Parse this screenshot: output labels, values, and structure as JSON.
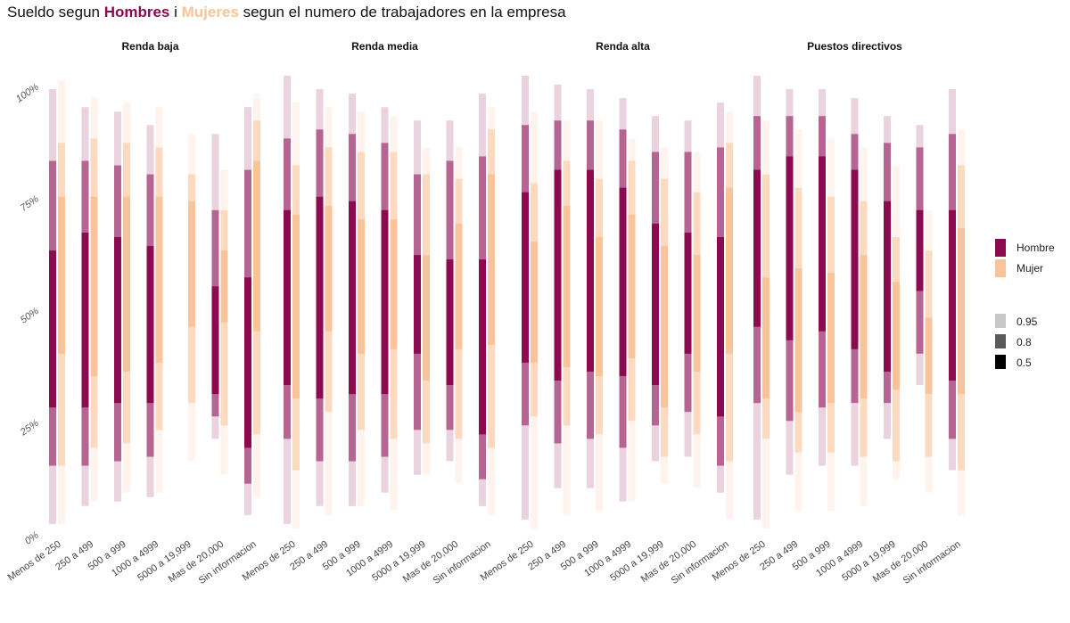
{
  "title": {
    "prefix": "Sueldo segun ",
    "hombres": "Hombres",
    "joiner": " i ",
    "mujeres": "Mujeres",
    "suffix": " segun el numero de trabajadores en la empresa"
  },
  "chart_data": {
    "type": "interval",
    "facets": [
      "Renda baja",
      "Renda media",
      "Renda alta",
      "Puestos directivos"
    ],
    "categories": [
      "Menos de 250",
      "250 a 499",
      "500 a 999",
      "1000 a 4999",
      "5000 a 19,999",
      "Mas de 20,000",
      "Sin informacion"
    ],
    "y_ticks": [
      "0%",
      "25%",
      "50%",
      "75%",
      "100%"
    ],
    "ylim": [
      0,
      1
    ],
    "levels": [
      "0.95",
      "0.8",
      "0.5"
    ],
    "series": [
      {
        "name": "Hombre",
        "color": "#8B0A50",
        "data": [
          [
            [
              [
                0.02,
                0.99
              ],
              [
                0.15,
                0.83
              ],
              [
                0.28,
                0.63
              ]
            ],
            [
              [
                0.06,
                0.95
              ],
              [
                0.15,
                0.83
              ],
              [
                0.28,
                0.67
              ]
            ],
            [
              [
                0.07,
                0.94
              ],
              [
                0.16,
                0.82
              ],
              [
                0.29,
                0.66
              ]
            ],
            [
              [
                0.08,
                0.91
              ],
              [
                0.17,
                0.8
              ],
              [
                0.29,
                0.64
              ]
            ],
            null,
            [
              [
                0.21,
                0.89
              ],
              [
                0.26,
                0.72
              ],
              [
                0.31,
                0.55
              ]
            ],
            [
              [
                0.04,
                0.95
              ],
              [
                0.11,
                0.81
              ],
              [
                0.19,
                0.57
              ]
            ]
          ],
          [
            [
              [
                0.02,
                1.02
              ],
              [
                0.21,
                0.88
              ],
              [
                0.33,
                0.72
              ]
            ],
            [
              [
                0.06,
                0.99
              ],
              [
                0.16,
                0.9
              ],
              [
                0.3,
                0.75
              ]
            ],
            [
              [
                0.06,
                0.98
              ],
              [
                0.16,
                0.89
              ],
              [
                0.31,
                0.74
              ]
            ],
            [
              [
                0.09,
                0.95
              ],
              [
                0.17,
                0.87
              ],
              [
                0.31,
                0.72
              ]
            ],
            [
              [
                0.13,
                0.92
              ],
              [
                0.23,
                0.8
              ],
              [
                0.4,
                0.62
              ]
            ],
            [
              [
                0.16,
                0.92
              ],
              [
                0.23,
                0.83
              ],
              [
                0.33,
                0.61
              ]
            ],
            [
              [
                0.06,
                0.98
              ],
              [
                0.12,
                0.84
              ],
              [
                0.22,
                0.61
              ]
            ]
          ],
          [
            [
              [
                0.03,
                1.02
              ],
              [
                0.24,
                0.91
              ],
              [
                0.38,
                0.76
              ]
            ],
            [
              [
                0.1,
                1.0
              ],
              [
                0.2,
                0.92
              ],
              [
                0.34,
                0.81
              ]
            ],
            [
              [
                0.1,
                0.99
              ],
              [
                0.21,
                0.92
              ],
              [
                0.36,
                0.81
              ]
            ],
            [
              [
                0.07,
                0.97
              ],
              [
                0.19,
                0.9
              ],
              [
                0.35,
                0.77
              ]
            ],
            [
              [
                0.16,
                0.93
              ],
              [
                0.24,
                0.85
              ],
              [
                0.33,
                0.69
              ]
            ],
            [
              [
                0.17,
                0.92
              ],
              [
                0.27,
                0.85
              ],
              [
                0.4,
                0.67
              ]
            ],
            [
              [
                0.09,
                0.96
              ],
              [
                0.15,
                0.86
              ],
              [
                0.26,
                0.66
              ]
            ]
          ],
          [
            [
              [
                0.03,
                1.02
              ],
              [
                0.29,
                0.93
              ],
              [
                0.46,
                0.81
              ]
            ],
            [
              [
                0.13,
                0.99
              ],
              [
                0.25,
                0.93
              ],
              [
                0.43,
                0.84
              ]
            ],
            [
              [
                0.15,
                0.99
              ],
              [
                0.28,
                0.93
              ],
              [
                0.45,
                0.84
              ]
            ],
            [
              [
                0.15,
                0.97
              ],
              [
                0.29,
                0.89
              ],
              [
                0.41,
                0.81
              ]
            ],
            [
              [
                0.21,
                0.93
              ],
              [
                0.29,
                0.87
              ],
              [
                0.36,
                0.74
              ]
            ],
            [
              [
                0.33,
                0.91
              ],
              [
                0.4,
                0.86
              ],
              [
                0.54,
                0.72
              ]
            ],
            [
              [
                0.14,
                0.99
              ],
              [
                0.21,
                0.89
              ],
              [
                0.34,
                0.72
              ]
            ]
          ]
        ]
      },
      {
        "name": "Mujer",
        "color": "#F9C49A",
        "data": [
          [
            [
              [
                0.02,
                1.01
              ],
              [
                0.15,
                0.87
              ],
              [
                0.4,
                0.75
              ]
            ],
            [
              [
                0.07,
                0.97
              ],
              [
                0.19,
                0.88
              ],
              [
                0.35,
                0.75
              ]
            ],
            [
              [
                0.09,
                0.96
              ],
              [
                0.2,
                0.87
              ],
              [
                0.36,
                0.75
              ]
            ],
            [
              [
                0.09,
                0.95
              ],
              [
                0.23,
                0.86
              ],
              [
                0.38,
                0.75
              ]
            ],
            [
              [
                0.16,
                0.89
              ],
              [
                0.29,
                0.8
              ],
              [
                0.46,
                0.74
              ]
            ],
            [
              [
                0.13,
                0.81
              ],
              [
                0.24,
                0.72
              ],
              [
                0.47,
                0.63
              ]
            ],
            [
              [
                0.08,
                0.98
              ],
              [
                0.22,
                0.92
              ],
              [
                0.45,
                0.83
              ]
            ]
          ],
          [
            [
              [
                0.01,
                0.96
              ],
              [
                0.14,
                0.82
              ],
              [
                0.3,
                0.71
              ]
            ],
            [
              [
                0.04,
                0.95
              ],
              [
                0.27,
                0.86
              ],
              [
                0.45,
                0.73
              ]
            ],
            [
              [
                0.06,
                0.94
              ],
              [
                0.23,
                0.85
              ],
              [
                0.4,
                0.7
              ]
            ],
            [
              [
                0.05,
                0.93
              ],
              [
                0.21,
                0.85
              ],
              [
                0.41,
                0.7
              ]
            ],
            [
              [
                0.13,
                0.86
              ],
              [
                0.2,
                0.8
              ],
              [
                0.34,
                0.62
              ]
            ],
            [
              [
                0.11,
                0.86
              ],
              [
                0.21,
                0.79
              ],
              [
                0.41,
                0.69
              ]
            ],
            [
              [
                0.04,
                0.95
              ],
              [
                0.19,
                0.9
              ],
              [
                0.42,
                0.8
              ]
            ]
          ],
          [
            [
              [
                0.01,
                0.94
              ],
              [
                0.26,
                0.78
              ],
              [
                0.38,
                0.65
              ]
            ],
            [
              [
                0.04,
                0.92
              ],
              [
                0.24,
                0.83
              ],
              [
                0.37,
                0.73
              ]
            ],
            [
              [
                0.05,
                0.92
              ],
              [
                0.22,
                0.79
              ],
              [
                0.35,
                0.66
              ]
            ],
            [
              [
                0.07,
                0.88
              ],
              [
                0.25,
                0.83
              ],
              [
                0.39,
                0.71
              ]
            ],
            [
              [
                0.11,
                0.86
              ],
              [
                0.17,
                0.79
              ],
              [
                0.28,
                0.64
              ]
            ],
            [
              [
                0.1,
                0.85
              ],
              [
                0.22,
                0.76
              ],
              [
                0.36,
                0.62
              ]
            ],
            [
              [
                0.03,
                0.94
              ],
              [
                0.16,
                0.87
              ],
              [
                0.4,
                0.77
              ]
            ]
          ],
          [
            [
              [
                0.01,
                0.92
              ],
              [
                0.21,
                0.8
              ],
              [
                0.3,
                0.57
              ]
            ],
            [
              [
                0.05,
                0.9
              ],
              [
                0.18,
                0.77
              ],
              [
                0.27,
                0.59
              ]
            ],
            [
              [
                0.05,
                0.88
              ],
              [
                0.18,
                0.75
              ],
              [
                0.29,
                0.58
              ]
            ],
            [
              [
                0.06,
                0.86
              ],
              [
                0.17,
                0.74
              ],
              [
                0.3,
                0.62
              ]
            ],
            [
              [
                0.12,
                0.82
              ],
              [
                0.16,
                0.66
              ],
              [
                0.32,
                0.56
              ]
            ],
            [
              [
                0.09,
                0.72
              ],
              [
                0.17,
                0.63
              ],
              [
                0.31,
                0.48
              ]
            ],
            [
              [
                0.04,
                0.9
              ],
              [
                0.14,
                0.82
              ],
              [
                0.31,
                0.68
              ]
            ]
          ]
        ]
      }
    ]
  },
  "legend": {
    "series": [
      {
        "label": "Hombre",
        "color": "#8B0A50"
      },
      {
        "label": "Mujer",
        "color": "#F9C49A"
      }
    ],
    "levels": [
      {
        "label": "0.95",
        "color": "#c8c8c8"
      },
      {
        "label": "0.8",
        "color": "#5a5a5a"
      },
      {
        "label": "0.5",
        "color": "#000000"
      }
    ]
  }
}
